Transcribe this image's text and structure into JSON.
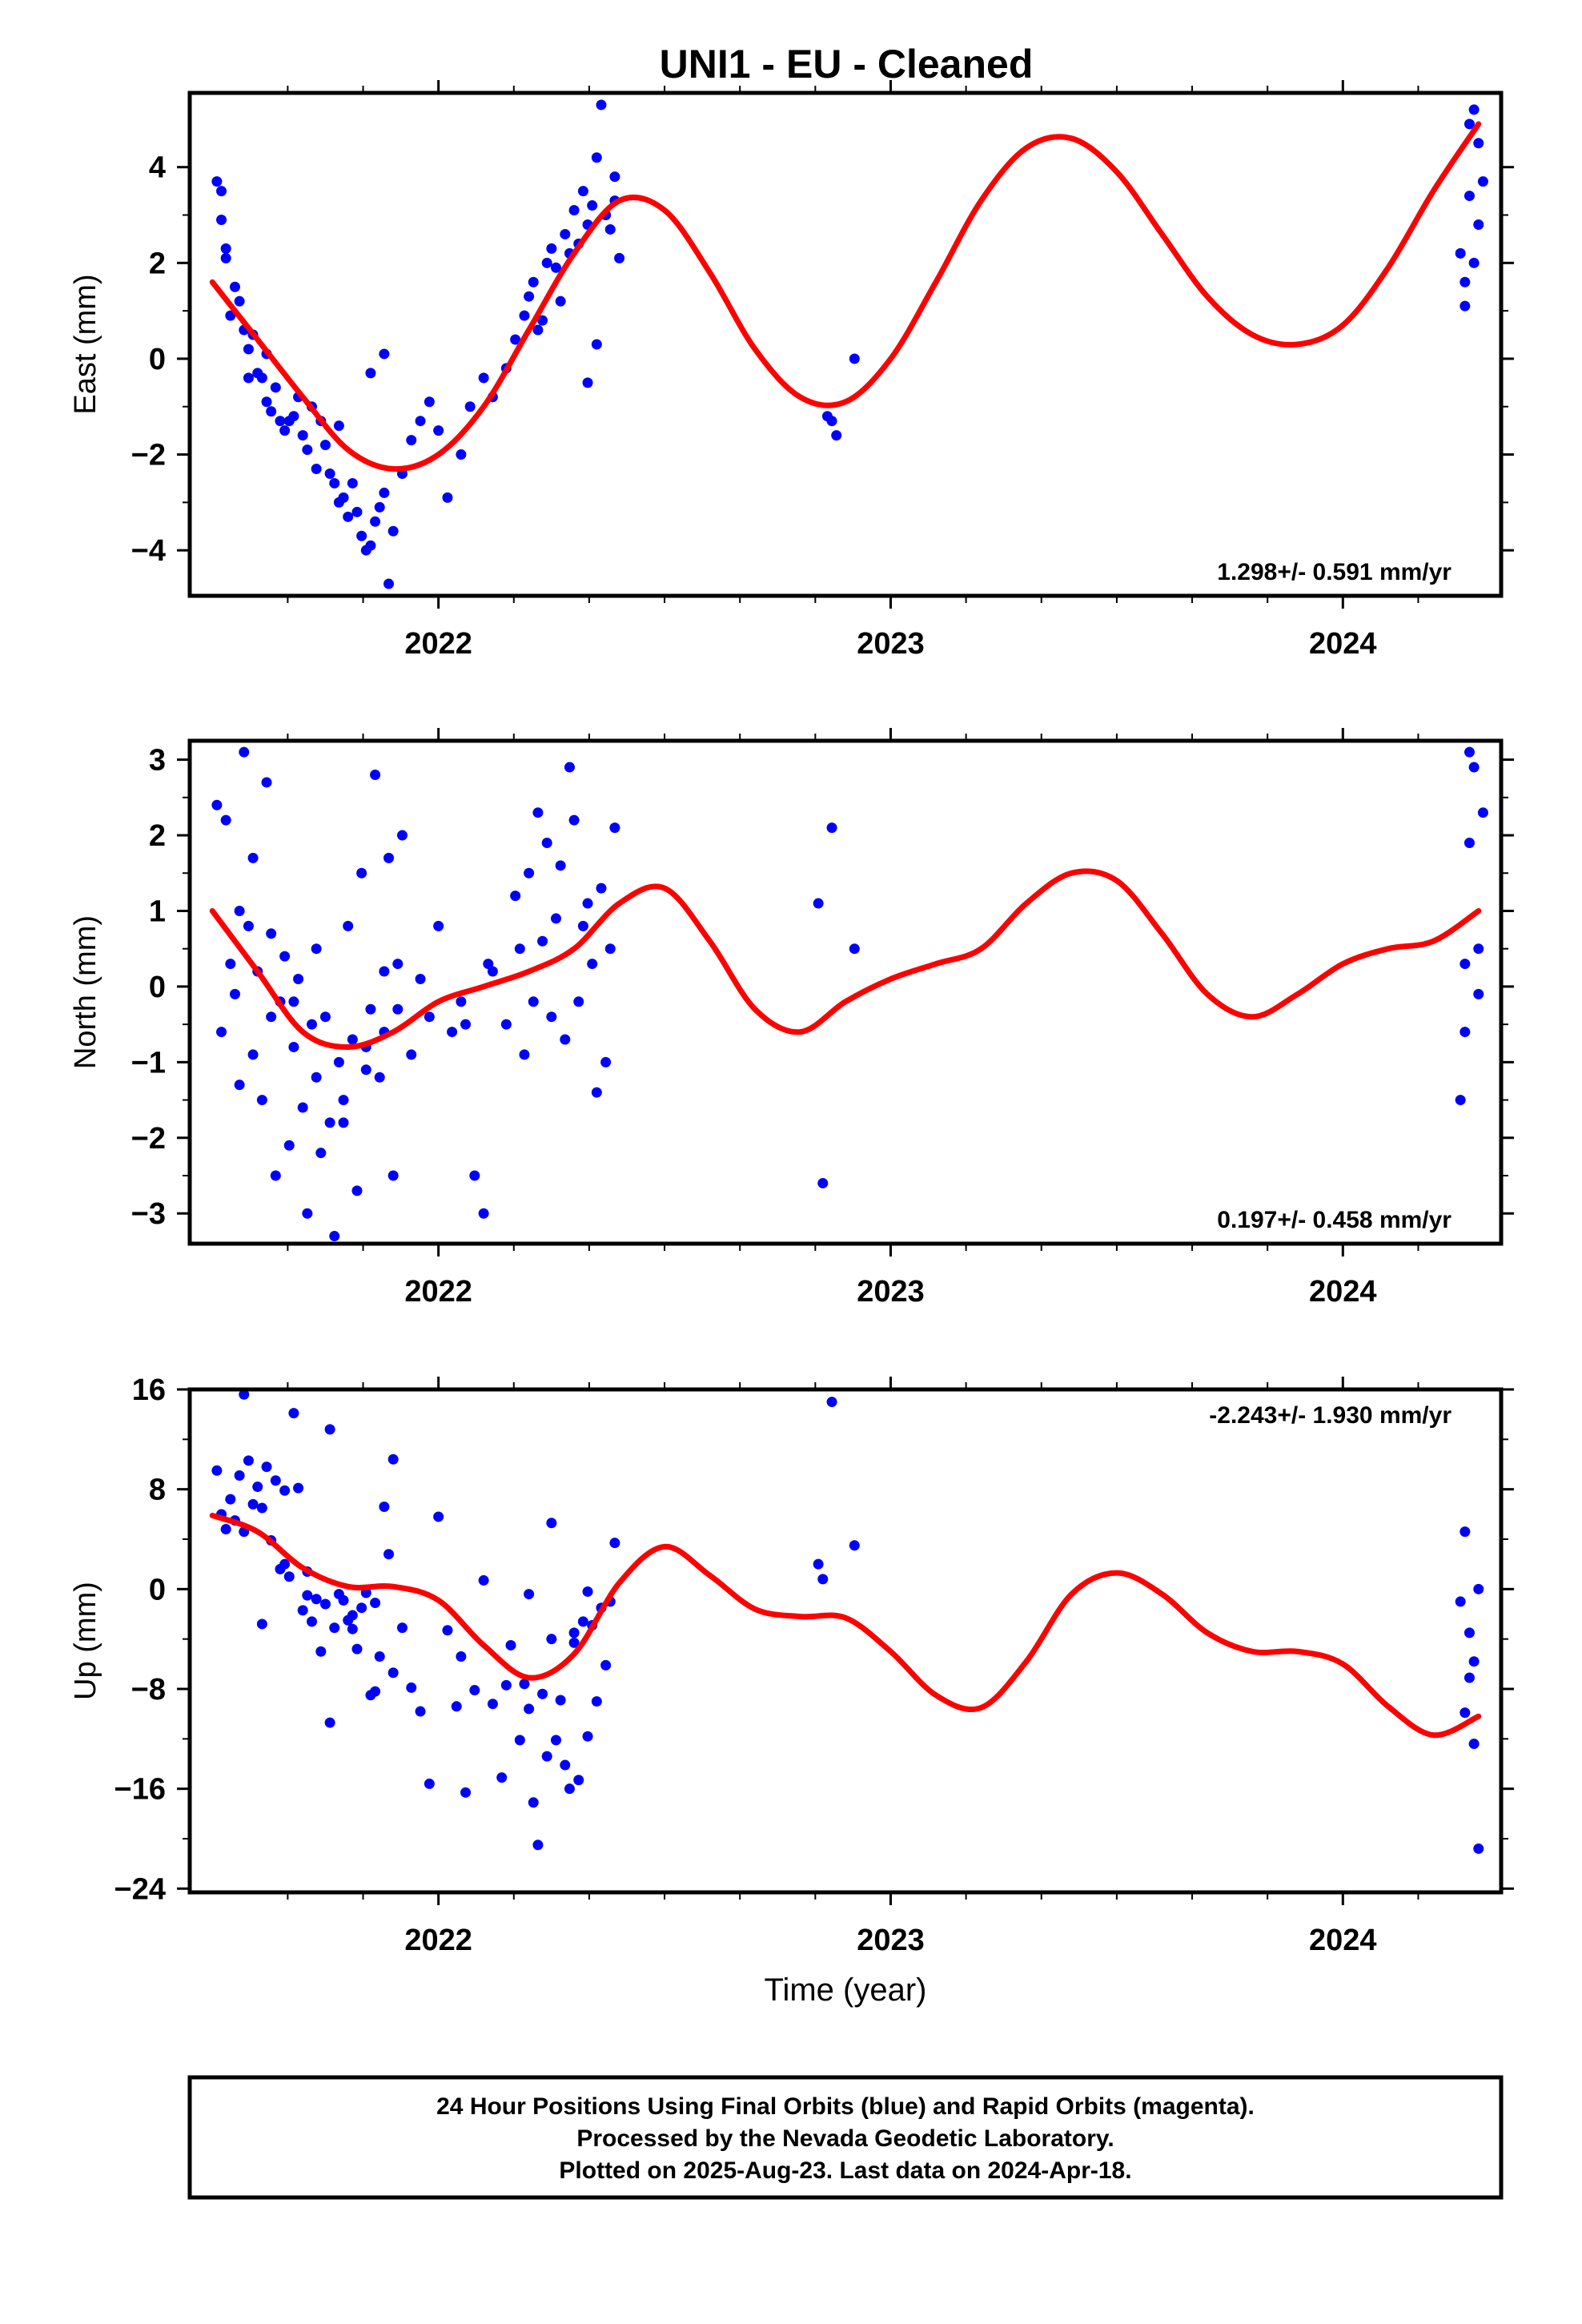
{
  "page_title": "UNI1  - EU - Cleaned",
  "colors": {
    "final_orbits": "#0000ff",
    "model_fit": "#ff0000",
    "frame": "#000000"
  },
  "chart_data": [
    {
      "type": "scatter",
      "ylabel": "East (mm)",
      "xlim": [
        2021.45,
        2024.35
      ],
      "ylim": [
        -4.95,
        5.55
      ],
      "yticks": [
        -4,
        -2,
        0,
        2,
        4
      ],
      "ytick_labels": [
        "−4",
        "−2",
        "0",
        "2",
        "4"
      ],
      "xticks": [
        2022,
        2023,
        2024
      ],
      "xtick_labels": [
        "2022",
        "2023",
        "2024"
      ],
      "rate_label": "1.298+/- 0.591 mm/yr",
      "rate_position": "bottom-right",
      "series": [
        {
          "style": "points",
          "color": "blue",
          "x": [
            2021.51,
            2021.52,
            2021.52,
            2021.53,
            2021.53,
            2021.54,
            2021.55,
            2021.56,
            2021.57,
            2021.58,
            2021.59,
            2021.6,
            2021.61,
            2021.62,
            2021.63,
            2021.64,
            2021.65,
            2021.66,
            2021.68,
            2021.69,
            2021.7,
            2021.71,
            2021.72,
            2021.74,
            2021.75,
            2021.76,
            2021.77,
            2021.78,
            2021.79,
            2021.8,
            2021.81,
            2021.82,
            2021.83,
            2021.84,
            2021.85,
            2021.86,
            2021.87,
            2021.88,
            2021.89,
            2021.9,
            2021.92,
            2021.94,
            2021.96,
            2021.98,
            2022.0,
            2022.02,
            2022.05,
            2022.07,
            2022.1,
            2022.12,
            2022.15,
            2022.17,
            2022.19,
            2022.2,
            2022.21,
            2022.22,
            2022.23,
            2022.24,
            2022.25,
            2022.26,
            2022.27,
            2022.28,
            2022.29,
            2022.3,
            2022.31,
            2022.32,
            2022.33,
            2022.34,
            2022.35,
            2022.36,
            2022.37,
            2022.38,
            2022.39,
            2022.39,
            2022.4,
            2021.58,
            2021.62,
            2021.67,
            2021.73,
            2021.78,
            2021.85,
            2021.88,
            2022.33,
            2022.35,
            2022.86,
            2022.87,
            2022.88,
            2022.92,
            2024.26,
            2024.27,
            2024.27,
            2024.28,
            2024.28,
            2024.29,
            2024.29,
            2024.3,
            2024.3,
            2024.31
          ],
          "y": [
            3.7,
            3.5,
            2.9,
            2.3,
            2.1,
            0.9,
            1.5,
            1.2,
            0.6,
            0.2,
            0.5,
            -0.3,
            -0.4,
            -0.9,
            -1.1,
            -0.6,
            -1.3,
            -1.5,
            -1.2,
            -0.8,
            -1.6,
            -1.9,
            -1.0,
            -1.3,
            -1.8,
            -2.4,
            -2.6,
            -3.0,
            -2.9,
            -3.3,
            -2.6,
            -3.2,
            -3.7,
            -4.0,
            -3.9,
            -3.4,
            -3.1,
            -2.8,
            -4.7,
            -3.6,
            -2.4,
            -1.7,
            -1.3,
            -0.9,
            -1.5,
            -2.9,
            -2.0,
            -1.0,
            -0.4,
            -0.8,
            -0.2,
            0.4,
            0.9,
            1.3,
            1.6,
            0.6,
            0.8,
            2.0,
            2.3,
            1.9,
            1.2,
            2.6,
            2.2,
            3.1,
            2.4,
            3.5,
            2.8,
            3.2,
            4.2,
            5.3,
            3.0,
            2.7,
            3.8,
            3.3,
            2.1,
            -0.4,
            0.1,
            -1.3,
            -2.3,
            -1.4,
            -0.3,
            0.1,
            -0.5,
            0.3,
            -1.2,
            -1.3,
            -1.6,
            0.0,
            2.2,
            1.1,
            1.6,
            4.9,
            3.4,
            5.2,
            2.0,
            4.5,
            2.8,
            3.7
          ]
        },
        {
          "style": "line",
          "color": "red",
          "x": [
            2021.5,
            2021.6,
            2021.7,
            2021.8,
            2021.9,
            2022.0,
            2022.1,
            2022.2,
            2022.3,
            2022.4,
            2022.5,
            2022.6,
            2022.7,
            2022.8,
            2022.9,
            2023.0,
            2023.1,
            2023.2,
            2023.3,
            2023.4,
            2023.5,
            2023.6,
            2023.7,
            2023.8,
            2023.9,
            2024.0,
            2024.1,
            2024.2,
            2024.3
          ],
          "y": [
            1.6,
            0.4,
            -0.8,
            -1.9,
            -2.3,
            -2.0,
            -1.0,
            0.6,
            2.2,
            3.3,
            3.1,
            1.8,
            0.2,
            -0.8,
            -0.9,
            0.0,
            1.6,
            3.3,
            4.4,
            4.6,
            3.9,
            2.6,
            1.3,
            0.5,
            0.3,
            0.7,
            1.9,
            3.5,
            4.9
          ]
        }
      ]
    },
    {
      "type": "scatter",
      "ylabel": "North (mm)",
      "xlim": [
        2021.45,
        2024.35
      ],
      "ylim": [
        -3.4,
        3.25
      ],
      "yticks": [
        -3,
        -2,
        -1,
        0,
        1,
        2,
        3
      ],
      "ytick_labels": [
        "−3",
        "−2",
        "−1",
        "0",
        "1",
        "2",
        "3"
      ],
      "xticks": [
        2022,
        2023,
        2024
      ],
      "xtick_labels": [
        "2022",
        "2023",
        "2024"
      ],
      "rate_label": "0.197+/- 0.458 mm/yr",
      "rate_position": "bottom-right",
      "series": [
        {
          "style": "points",
          "color": "blue",
          "x": [
            2021.51,
            2021.52,
            2021.53,
            2021.54,
            2021.55,
            2021.56,
            2021.57,
            2021.58,
            2021.59,
            2021.6,
            2021.61,
            2021.62,
            2021.63,
            2021.64,
            2021.65,
            2021.66,
            2021.67,
            2021.68,
            2021.69,
            2021.7,
            2021.71,
            2021.72,
            2021.73,
            2021.74,
            2021.75,
            2021.76,
            2021.77,
            2021.78,
            2021.79,
            2021.8,
            2021.81,
            2021.82,
            2021.83,
            2021.84,
            2021.85,
            2021.86,
            2021.87,
            2021.88,
            2021.89,
            2021.9,
            2021.91,
            2021.92,
            2021.94,
            2021.96,
            2021.98,
            2022.0,
            2022.03,
            2022.05,
            2022.08,
            2022.1,
            2022.12,
            2022.15,
            2022.17,
            2022.18,
            2022.19,
            2022.2,
            2022.21,
            2022.22,
            2022.23,
            2022.24,
            2022.25,
            2022.26,
            2022.27,
            2022.28,
            2022.29,
            2022.3,
            2022.31,
            2022.32,
            2022.33,
            2022.34,
            2022.35,
            2022.36,
            2022.37,
            2022.38,
            2022.39,
            2021.56,
            2021.59,
            2021.63,
            2021.68,
            2021.73,
            2021.79,
            2021.84,
            2021.88,
            2021.91,
            2022.06,
            2022.11,
            2022.84,
            2022.85,
            2022.87,
            2022.92,
            2024.26,
            2024.27,
            2024.27,
            2024.28,
            2024.28,
            2024.29,
            2024.3,
            2024.3,
            2024.31
          ],
          "y": [
            2.4,
            -0.6,
            2.2,
            0.3,
            -0.1,
            1.0,
            3.1,
            0.8,
            -0.9,
            0.2,
            -1.5,
            2.7,
            -0.4,
            -2.5,
            -0.2,
            0.4,
            -2.1,
            -0.8,
            0.1,
            -1.6,
            -3.0,
            -0.5,
            -1.2,
            -2.2,
            -0.4,
            -1.8,
            -3.3,
            -1.0,
            -1.5,
            0.8,
            -0.7,
            -2.7,
            1.5,
            -1.1,
            -0.3,
            2.8,
            -1.2,
            -0.6,
            1.7,
            -2.5,
            0.3,
            2.0,
            -0.9,
            0.1,
            -0.4,
            0.8,
            -0.6,
            -0.2,
            -2.5,
            -3.0,
            0.2,
            -0.5,
            1.2,
            0.5,
            -0.9,
            1.5,
            -0.2,
            2.3,
            0.6,
            1.9,
            -0.4,
            0.9,
            1.6,
            -0.7,
            2.9,
            2.2,
            -0.2,
            0.8,
            1.1,
            0.3,
            -1.4,
            1.3,
            -1.0,
            0.5,
            2.1,
            -1.3,
            1.7,
            0.7,
            -0.2,
            0.5,
            -1.8,
            -0.8,
            0.2,
            -0.3,
            -0.5,
            0.3,
            1.1,
            -2.6,
            2.1,
            0.5,
            -1.5,
            0.3,
            -0.6,
            3.1,
            1.9,
            2.9,
            0.5,
            -0.1,
            2.3
          ]
        },
        {
          "style": "line",
          "color": "red",
          "x": [
            2021.5,
            2021.6,
            2021.7,
            2021.8,
            2021.9,
            2022.0,
            2022.1,
            2022.2,
            2022.3,
            2022.4,
            2022.5,
            2022.6,
            2022.7,
            2022.8,
            2022.9,
            2023.0,
            2023.1,
            2023.2,
            2023.3,
            2023.4,
            2023.5,
            2023.6,
            2023.7,
            2023.8,
            2023.9,
            2024.0,
            2024.1,
            2024.2,
            2024.3
          ],
          "y": [
            1.0,
            0.2,
            -0.6,
            -0.8,
            -0.6,
            -0.2,
            0.0,
            0.2,
            0.5,
            1.1,
            1.3,
            0.6,
            -0.3,
            -0.6,
            -0.2,
            0.1,
            0.3,
            0.5,
            1.1,
            1.5,
            1.4,
            0.7,
            -0.1,
            -0.4,
            -0.1,
            0.3,
            0.5,
            0.6,
            1.0
          ]
        }
      ]
    },
    {
      "type": "scatter",
      "ylabel": "Up (mm)",
      "xlim": [
        2021.45,
        2024.35
      ],
      "ylim": [
        -24.3,
        16.0
      ],
      "yticks": [
        -24,
        -16,
        -8,
        0,
        8,
        16
      ],
      "ytick_labels": [
        "−24",
        "−16",
        "−8",
        "0",
        "8",
        "16"
      ],
      "xticks": [
        2022,
        2023,
        2024
      ],
      "xtick_labels": [
        "2022",
        "2023",
        "2024"
      ],
      "xlabel": "Time (year)",
      "rate_label": "-2.243+/- 1.930 mm/yr",
      "rate_position": "top-right",
      "series": [
        {
          "style": "points",
          "color": "blue",
          "x": [
            2021.51,
            2021.52,
            2021.53,
            2021.54,
            2021.55,
            2021.56,
            2021.57,
            2021.58,
            2021.59,
            2021.6,
            2021.61,
            2021.62,
            2021.63,
            2021.64,
            2021.65,
            2021.66,
            2021.67,
            2021.68,
            2021.69,
            2021.7,
            2021.71,
            2021.72,
            2021.73,
            2021.74,
            2021.75,
            2021.76,
            2021.77,
            2021.78,
            2021.79,
            2021.8,
            2021.81,
            2021.82,
            2021.83,
            2021.84,
            2021.85,
            2021.86,
            2021.87,
            2021.88,
            2021.89,
            2021.9,
            2021.92,
            2021.94,
            2021.96,
            2021.98,
            2022.0,
            2022.02,
            2022.04,
            2022.06,
            2022.08,
            2022.1,
            2022.12,
            2022.14,
            2022.16,
            2022.18,
            2022.19,
            2022.2,
            2022.21,
            2022.22,
            2022.23,
            2022.24,
            2022.25,
            2022.26,
            2022.27,
            2022.28,
            2022.29,
            2022.3,
            2022.31,
            2022.32,
            2022.33,
            2022.34,
            2022.35,
            2022.36,
            2022.37,
            2022.38,
            2022.39,
            2021.57,
            2021.61,
            2021.66,
            2021.71,
            2021.76,
            2021.81,
            2021.86,
            2021.9,
            2022.05,
            2022.15,
            2022.2,
            2022.25,
            2022.3,
            2022.33,
            2022.84,
            2022.85,
            2022.87,
            2022.92,
            2024.26,
            2024.27,
            2024.27,
            2024.28,
            2024.28,
            2024.29,
            2024.29,
            2024.3,
            2024.3
          ],
          "y": [
            9.5,
            6.0,
            4.8,
            7.2,
            5.5,
            9.1,
            15.6,
            10.3,
            6.8,
            8.2,
            6.5,
            9.8,
            3.9,
            8.7,
            1.6,
            2.0,
            1.0,
            14.1,
            8.1,
            -1.7,
            -0.5,
            -2.6,
            -0.8,
            -5.0,
            -1.2,
            12.8,
            -3.1,
            -0.4,
            -0.9,
            -2.5,
            -3.2,
            -4.8,
            -1.5,
            -0.3,
            -8.5,
            -1.1,
            -5.4,
            6.6,
            2.8,
            10.4,
            -3.1,
            -7.9,
            -9.8,
            -15.6,
            5.8,
            -3.3,
            -9.4,
            -16.3,
            -8.1,
            0.7,
            -9.2,
            -15.1,
            -4.5,
            -12.1,
            -7.6,
            -9.6,
            -17.1,
            -20.5,
            -8.4,
            -13.4,
            -4.0,
            -12.1,
            -8.9,
            -14.1,
            -16.0,
            -4.3,
            -15.3,
            -2.6,
            -11.8,
            -2.9,
            -9.0,
            -1.5,
            -6.1,
            -1.0,
            3.7,
            4.6,
            -2.8,
            7.9,
            1.4,
            -10.7,
            -2.1,
            -8.2,
            -6.7,
            -5.4,
            -7.7,
            -0.4,
            5.3,
            -3.5,
            -0.2,
            2.0,
            0.8,
            15.0,
            3.5,
            -1.0,
            4.6,
            -9.9,
            -7.1,
            -3.5,
            -12.4,
            -5.8,
            -20.8,
            0.0
          ]
        },
        {
          "style": "line",
          "color": "red",
          "x": [
            2021.5,
            2021.6,
            2021.7,
            2021.8,
            2021.9,
            2022.0,
            2022.1,
            2022.2,
            2022.3,
            2022.4,
            2022.5,
            2022.6,
            2022.7,
            2022.8,
            2022.9,
            2023.0,
            2023.1,
            2023.2,
            2023.3,
            2023.4,
            2023.5,
            2023.6,
            2023.7,
            2023.8,
            2023.9,
            2024.0,
            2024.1,
            2024.2,
            2024.3
          ],
          "y": [
            5.9,
            4.6,
            1.7,
            0.2,
            0.2,
            -0.9,
            -4.5,
            -7.1,
            -5.2,
            0.5,
            3.4,
            1.1,
            -1.6,
            -2.2,
            -2.3,
            -5.0,
            -8.5,
            -9.5,
            -5.8,
            -0.4,
            1.3,
            -0.4,
            -3.5,
            -5.0,
            -5.0,
            -6.0,
            -9.4,
            -11.7,
            -10.2
          ]
        }
      ]
    }
  ],
  "footer": {
    "line1": "24 Hour Positions Using Final Orbits (blue) and Rapid Orbits (magenta).",
    "line2": "Processed by the Nevada Geodetic Laboratory.",
    "line3": "Plotted on 2025-Aug-23. Last data on 2024-Apr-18."
  }
}
